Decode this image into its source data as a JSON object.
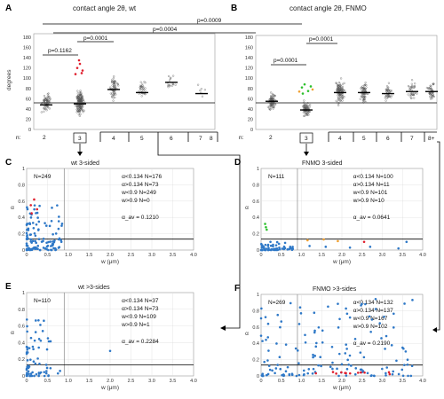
{
  "panels": {
    "A": {
      "letter": "A",
      "title": "contact angle 2θ, wt",
      "ylabel": "degrees",
      "yticks": [
        "180",
        "160",
        "140",
        "120",
        "100",
        "80",
        "60",
        "40",
        "20",
        "0"
      ],
      "n_label": "n:",
      "groups": [
        "2",
        "3",
        "4",
        "5",
        "6",
        "7",
        "8"
      ],
      "pvals": [
        "p=0.1162",
        "p=0.0001",
        "p=0.0004",
        "p=0.0009"
      ]
    },
    "B": {
      "letter": "B",
      "title": "contact angle 2θ, FNMO",
      "yticks": [
        "180",
        "160",
        "140",
        "120",
        "100",
        "80",
        "60",
        "40",
        "20",
        "0"
      ],
      "n_label": "n:",
      "groups": [
        "2",
        "3",
        "4",
        "5",
        "6",
        "7",
        "8+"
      ],
      "pvals": [
        "p=0.0001",
        "p=0.0001"
      ]
    },
    "C": {
      "letter": "C",
      "title": "wt 3-sided",
      "n": "N=249",
      "ylabel": "α",
      "xlabel": "w (μm)",
      "stats": [
        "α<0.134 N=176",
        "α>0.134 N=73",
        "w<0.9 N=249",
        "w>0.9 N=0"
      ],
      "mean": "α_av = 0.1210"
    },
    "D": {
      "letter": "D",
      "title": "FNMO 3-sided",
      "n": "N=111",
      "ylabel": "α",
      "xlabel": "w (μm)",
      "stats": [
        "α<0.134 N=100",
        "α>0.134 N=11",
        "w<0.9 N=101",
        "w>0.9 N=10"
      ],
      "mean": "α_av = 0.0641"
    },
    "E": {
      "letter": "E",
      "title": "wt >3-sides",
      "n": "N=110",
      "ylabel": "α",
      "xlabel": "w (μm)",
      "stats": [
        "α<0.134 N=37",
        "α>0.134 N=73",
        "w<0.9 N=109",
        "w>0.9 N=1"
      ],
      "mean": "α_av = 0.2284"
    },
    "F": {
      "letter": "F",
      "title": "FNMO >3-sides",
      "n": "N=269",
      "ylabel": "α",
      "xlabel": "w (μm)",
      "stats": [
        "α<0.134 N=132",
        "α>0.134 N=137",
        "w<0.9 N=167",
        "w>0.9 N=102"
      ],
      "mean": "α_av = 0.2190"
    }
  },
  "scatter_xticks": [
    "0",
    "0.5",
    "1.0",
    "1.5",
    "2.0",
    "2.5",
    "3.0",
    "3.5",
    "4.0"
  ],
  "scatter_yticks": [
    "1",
    "0.8",
    "0.6",
    "0.4",
    "0.2",
    "0"
  ],
  "colors": {
    "blue": "#2e78c7",
    "red": "#e0202e",
    "green": "#2cc02c",
    "orange": "#f0a030",
    "gray": "#666666"
  }
}
